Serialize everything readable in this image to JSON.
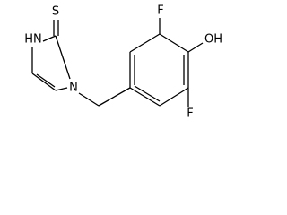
{
  "atoms": {
    "sulfur": "S",
    "nh": "HN",
    "n": "N",
    "fluorine_top": "F",
    "hydroxyl": "OH",
    "fluorine_bottom": "F"
  }
}
